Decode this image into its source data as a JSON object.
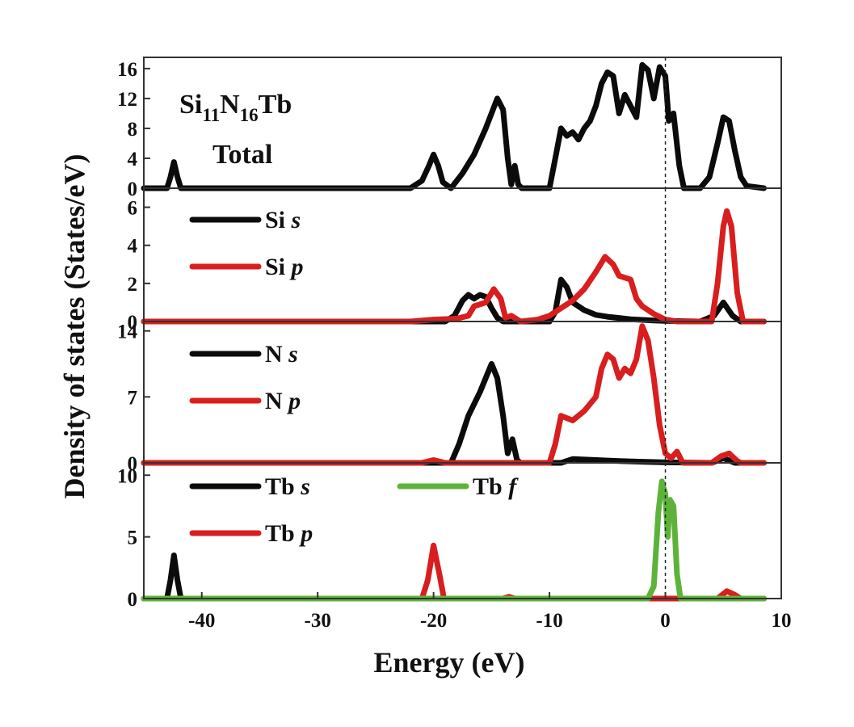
{
  "figure": {
    "xlabel": "Energy (eV)",
    "ylabel": "Density of states (States/eV)",
    "note_total": "Total"
  },
  "colors": {
    "s": "#0b0b0b",
    "p": "#d81e1e",
    "f": "#5db33a",
    "axis": "#333333"
  },
  "chart_data": [
    {
      "type": "line",
      "panel": "total",
      "annotation": {
        "base": "Si",
        "sub1": "11",
        "mid": "N",
        "sub2": "16",
        "tail": "Tb",
        "line2": "Total"
      },
      "xlim": [
        -45,
        10
      ],
      "ylim": [
        0,
        17.5
      ],
      "yticks": [
        0,
        4,
        8,
        12,
        16
      ],
      "fermi_level": 0,
      "series": [
        {
          "key": "total",
          "color_key": "s",
          "points": [
            [
              -45,
              0
            ],
            [
              -43,
              0
            ],
            [
              -42.7,
              1.5
            ],
            [
              -42.4,
              3.5
            ],
            [
              -42.1,
              1.5
            ],
            [
              -41.8,
              0
            ],
            [
              -22,
              0
            ],
            [
              -21,
              1
            ],
            [
              -20.4,
              3
            ],
            [
              -20,
              4.5
            ],
            [
              -19.6,
              3
            ],
            [
              -19.2,
              0.8
            ],
            [
              -18.5,
              0
            ],
            [
              -17.5,
              2
            ],
            [
              -16.5,
              4.5
            ],
            [
              -15.5,
              8
            ],
            [
              -14.5,
              12
            ],
            [
              -14,
              10.5
            ],
            [
              -13.6,
              4
            ],
            [
              -13.3,
              0.5
            ],
            [
              -13,
              3
            ],
            [
              -12.7,
              0.5
            ],
            [
              -12.4,
              0
            ],
            [
              -10,
              0
            ],
            [
              -9.5,
              4
            ],
            [
              -9,
              8
            ],
            [
              -8.5,
              7
            ],
            [
              -8,
              7.5
            ],
            [
              -7.5,
              6.5
            ],
            [
              -7,
              8
            ],
            [
              -6.5,
              9
            ],
            [
              -6,
              11
            ],
            [
              -5.5,
              14
            ],
            [
              -5,
              15.5
            ],
            [
              -4.5,
              15
            ],
            [
              -4,
              10
            ],
            [
              -3.5,
              12.5
            ],
            [
              -3,
              11
            ],
            [
              -2.5,
              9.5
            ],
            [
              -2,
              16.5
            ],
            [
              -1.5,
              15.8
            ],
            [
              -1,
              12
            ],
            [
              -0.5,
              16.2
            ],
            [
              0,
              15
            ],
            [
              0.3,
              9
            ],
            [
              0.7,
              10
            ],
            [
              1.2,
              3
            ],
            [
              1.6,
              0
            ],
            [
              3,
              0
            ],
            [
              3.8,
              1.5
            ],
            [
              4.5,
              6
            ],
            [
              5,
              9.5
            ],
            [
              5.5,
              9
            ],
            [
              6,
              5
            ],
            [
              6.5,
              1.5
            ],
            [
              7,
              0.3
            ],
            [
              8.5,
              0
            ]
          ]
        }
      ]
    },
    {
      "type": "line",
      "panel": "Si",
      "xlim": [
        -45,
        10
      ],
      "ylim": [
        0,
        7
      ],
      "yticks": [
        0,
        2,
        4,
        6
      ],
      "fermi_level": 0,
      "legend": [
        {
          "element": "Si",
          "orbital": "s",
          "color_key": "s"
        },
        {
          "element": "Si",
          "orbital": "p",
          "color_key": "p"
        }
      ],
      "series": [
        {
          "key": "Si s",
          "color_key": "s",
          "points": [
            [
              -45,
              0
            ],
            [
              -19,
              0
            ],
            [
              -18.2,
              0.3
            ],
            [
              -17.5,
              1.1
            ],
            [
              -17,
              1.4
            ],
            [
              -16.5,
              1.2
            ],
            [
              -16,
              1.4
            ],
            [
              -15.5,
              1.3
            ],
            [
              -15,
              0.7
            ],
            [
              -14.5,
              0.2
            ],
            [
              -14,
              0
            ],
            [
              -10,
              0
            ],
            [
              -9.5,
              0.5
            ],
            [
              -9,
              2.2
            ],
            [
              -8.5,
              1.8
            ],
            [
              -8,
              1
            ],
            [
              -7,
              0.6
            ],
            [
              -6,
              0.35
            ],
            [
              -5,
              0.25
            ],
            [
              -3,
              0.12
            ],
            [
              -1,
              0.05
            ],
            [
              0,
              0.03
            ],
            [
              3,
              0
            ],
            [
              4.2,
              0.3
            ],
            [
              5,
              1
            ],
            [
              5.8,
              0.3
            ],
            [
              6.5,
              0
            ],
            [
              8.5,
              0
            ]
          ]
        },
        {
          "key": "Si p",
          "color_key": "p",
          "points": [
            [
              -45,
              0
            ],
            [
              -22,
              0
            ],
            [
              -20,
              0.1
            ],
            [
              -18,
              0.15
            ],
            [
              -17,
              0.3
            ],
            [
              -16.5,
              0.8
            ],
            [
              -15.5,
              1
            ],
            [
              -14.8,
              1.7
            ],
            [
              -14.2,
              1.2
            ],
            [
              -13.8,
              0.2
            ],
            [
              -13.3,
              0.3
            ],
            [
              -12.5,
              0
            ],
            [
              -11,
              0.1
            ],
            [
              -10,
              0.3
            ],
            [
              -9,
              0.7
            ],
            [
              -8,
              1.1
            ],
            [
              -7,
              1.7
            ],
            [
              -6,
              2.6
            ],
            [
              -5.2,
              3.4
            ],
            [
              -4.5,
              3
            ],
            [
              -4,
              2.4
            ],
            [
              -3,
              2.2
            ],
            [
              -2.5,
              1.2
            ],
            [
              -2,
              0.8
            ],
            [
              -1,
              0.4
            ],
            [
              0,
              0.1
            ],
            [
              1,
              0
            ],
            [
              4,
              0
            ],
            [
              4.5,
              2
            ],
            [
              5,
              5
            ],
            [
              5.3,
              5.8
            ],
            [
              5.7,
              5
            ],
            [
              6.2,
              1.5
            ],
            [
              6.7,
              0
            ],
            [
              8.5,
              0
            ]
          ]
        }
      ]
    },
    {
      "type": "line",
      "panel": "N",
      "xlim": [
        -45,
        10
      ],
      "ylim": [
        0,
        15
      ],
      "yticks": [
        0,
        7,
        14
      ],
      "fermi_level": 0,
      "legend": [
        {
          "element": "N",
          "orbital": "s",
          "color_key": "s"
        },
        {
          "element": "N",
          "orbital": "p",
          "color_key": "p"
        }
      ],
      "series": [
        {
          "key": "N s",
          "color_key": "s",
          "points": [
            [
              -45,
              0
            ],
            [
              -18.5,
              0
            ],
            [
              -17.8,
              2
            ],
            [
              -17,
              5
            ],
            [
              -16,
              7.5
            ],
            [
              -15.5,
              9
            ],
            [
              -15,
              10.5
            ],
            [
              -14.5,
              9
            ],
            [
              -14,
              5
            ],
            [
              -13.6,
              1
            ],
            [
              -13.2,
              2.5
            ],
            [
              -12.8,
              0.3
            ],
            [
              -12.5,
              0
            ],
            [
              -9,
              0
            ],
            [
              -8,
              0.4
            ],
            [
              -6,
              0.3
            ],
            [
              -4,
              0.2
            ],
            [
              -2,
              0.12
            ],
            [
              0,
              0.05
            ],
            [
              4,
              0
            ],
            [
              5,
              0.5
            ],
            [
              6,
              0
            ],
            [
              8.5,
              0
            ]
          ]
        },
        {
          "key": "N p",
          "color_key": "p",
          "points": [
            [
              -45,
              0
            ],
            [
              -21,
              0
            ],
            [
              -20,
              0.3
            ],
            [
              -19,
              0
            ],
            [
              -10,
              0
            ],
            [
              -9.5,
              2
            ],
            [
              -9,
              5
            ],
            [
              -8,
              4.5
            ],
            [
              -7,
              5.5
            ],
            [
              -6,
              7
            ],
            [
              -5.5,
              10
            ],
            [
              -5,
              11.5
            ],
            [
              -4.5,
              11
            ],
            [
              -4,
              9
            ],
            [
              -3.5,
              10
            ],
            [
              -3,
              9.5
            ],
            [
              -2.5,
              11
            ],
            [
              -2,
              14.5
            ],
            [
              -1.5,
              13
            ],
            [
              -1,
              9
            ],
            [
              -0.5,
              4
            ],
            [
              0,
              1
            ],
            [
              0.5,
              0.5
            ],
            [
              1,
              1.2
            ],
            [
              1.5,
              0
            ],
            [
              4,
              0
            ],
            [
              4.8,
              0.7
            ],
            [
              5.5,
              1
            ],
            [
              6.2,
              0.2
            ],
            [
              6.5,
              0
            ],
            [
              8.5,
              0
            ]
          ]
        }
      ]
    },
    {
      "type": "line",
      "panel": "Tb",
      "xlim": [
        -45,
        10
      ],
      "ylim": [
        0,
        11
      ],
      "yticks": [
        0,
        5,
        10
      ],
      "fermi_level": 0,
      "legend": [
        {
          "element": "Tb",
          "orbital": "s",
          "color_key": "s"
        },
        {
          "element": "Tb",
          "orbital": "p",
          "color_key": "p"
        },
        {
          "element": "Tb",
          "orbital": "f",
          "color_key": "f"
        }
      ],
      "xticks": [
        -40,
        -30,
        -20,
        -10,
        0,
        10
      ],
      "series": [
        {
          "key": "Tb s",
          "color_key": "s",
          "points": [
            [
              -45,
              0
            ],
            [
              -43,
              0
            ],
            [
              -42.7,
              1.5
            ],
            [
              -42.4,
              3.5
            ],
            [
              -42.1,
              1.5
            ],
            [
              -41.8,
              0
            ],
            [
              8.5,
              0
            ]
          ]
        },
        {
          "key": "Tb p",
          "color_key": "p",
          "points": [
            [
              -45,
              0
            ],
            [
              -21,
              0
            ],
            [
              -20.5,
              1.5
            ],
            [
              -20,
              4.3
            ],
            [
              -19.5,
              2
            ],
            [
              -19.1,
              0
            ],
            [
              -14,
              0
            ],
            [
              -13.5,
              0.15
            ],
            [
              -13,
              0
            ],
            [
              4.5,
              0
            ],
            [
              5.3,
              0.6
            ],
            [
              6,
              0.3
            ],
            [
              6.5,
              0
            ],
            [
              8.5,
              0
            ]
          ]
        },
        {
          "key": "Tb f",
          "color_key": "f",
          "points": [
            [
              -45,
              0
            ],
            [
              -1.5,
              0
            ],
            [
              -1,
              1
            ],
            [
              -0.6,
              7
            ],
            [
              -0.3,
              9.5
            ],
            [
              0,
              8.5
            ],
            [
              0.2,
              5
            ],
            [
              0.4,
              8
            ],
            [
              0.7,
              7.5
            ],
            [
              1,
              2
            ],
            [
              1.3,
              0
            ],
            [
              8.5,
              0
            ]
          ]
        }
      ]
    }
  ]
}
